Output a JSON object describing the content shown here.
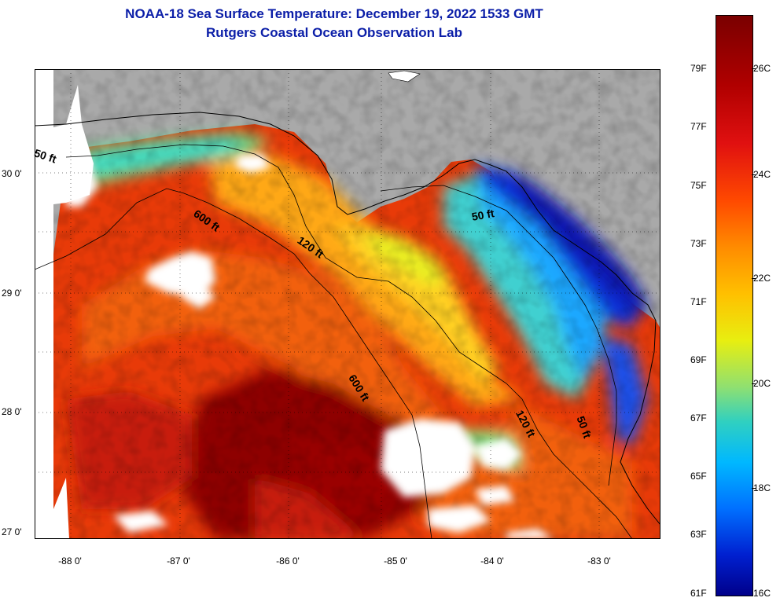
{
  "header": {
    "title": "NOAA-18 Sea Surface Temperature:  December 19, 2022 1533 GMT",
    "subtitle": "Rutgers Coastal Ocean Observation Lab"
  },
  "map": {
    "region": "Eastern Gulf of Mexico / Florida Big Bend",
    "longitude_ticks": [
      "-88 0'",
      "-87 0'",
      "-86 0'",
      "-85 0'",
      "-84 0'",
      "-83 0'"
    ],
    "latitude_ticks": [
      "30 0'",
      "29 0'",
      "28 0'",
      "27 0'"
    ],
    "isobath_labels": [
      "50 ft",
      "600 ft",
      "120 ft",
      "50 ft",
      "600 ft",
      "120 ft",
      "50 ft"
    ],
    "colors": {
      "land": "#a9a9a9",
      "cloud": "#ffffff",
      "coastline": "#000000"
    }
  },
  "colorbar": {
    "fahrenheit_labels": [
      "79F",
      "77F",
      "75F",
      "73F",
      "71F",
      "69F",
      "67F",
      "65F",
      "63F",
      "61F"
    ],
    "celsius_labels": [
      "26C",
      "24C",
      "22C",
      "20C",
      "18C",
      "16C"
    ],
    "colors": [
      "#7a0000",
      "#e01010",
      "#ff8c00",
      "#e8ee10",
      "#30d0c0",
      "#0070ff",
      "#00008a"
    ]
  }
}
